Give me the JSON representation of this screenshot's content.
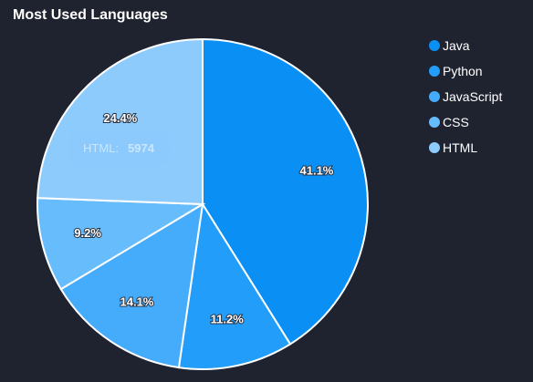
{
  "title": "Most Used Languages",
  "chart_data": {
    "type": "pie",
    "title": "Most Used Languages",
    "slices": [
      {
        "name": "Java",
        "value": 41.1,
        "label": "41.1%",
        "color": "#0a8ff5"
      },
      {
        "name": "Python",
        "value": 11.2,
        "label": "11.2%",
        "color": "#229dfa"
      },
      {
        "name": "JavaScript",
        "value": 14.1,
        "label": "14.1%",
        "color": "#45acfb"
      },
      {
        "name": "CSS",
        "value": 9.2,
        "label": "9.2%",
        "color": "#67bdfc"
      },
      {
        "name": "HTML",
        "value": 24.4,
        "label": "24.4%",
        "color": "#8dcbfd"
      }
    ],
    "legend_position": "top-right"
  },
  "tooltip": {
    "name": "HTML:",
    "value": "5974"
  }
}
